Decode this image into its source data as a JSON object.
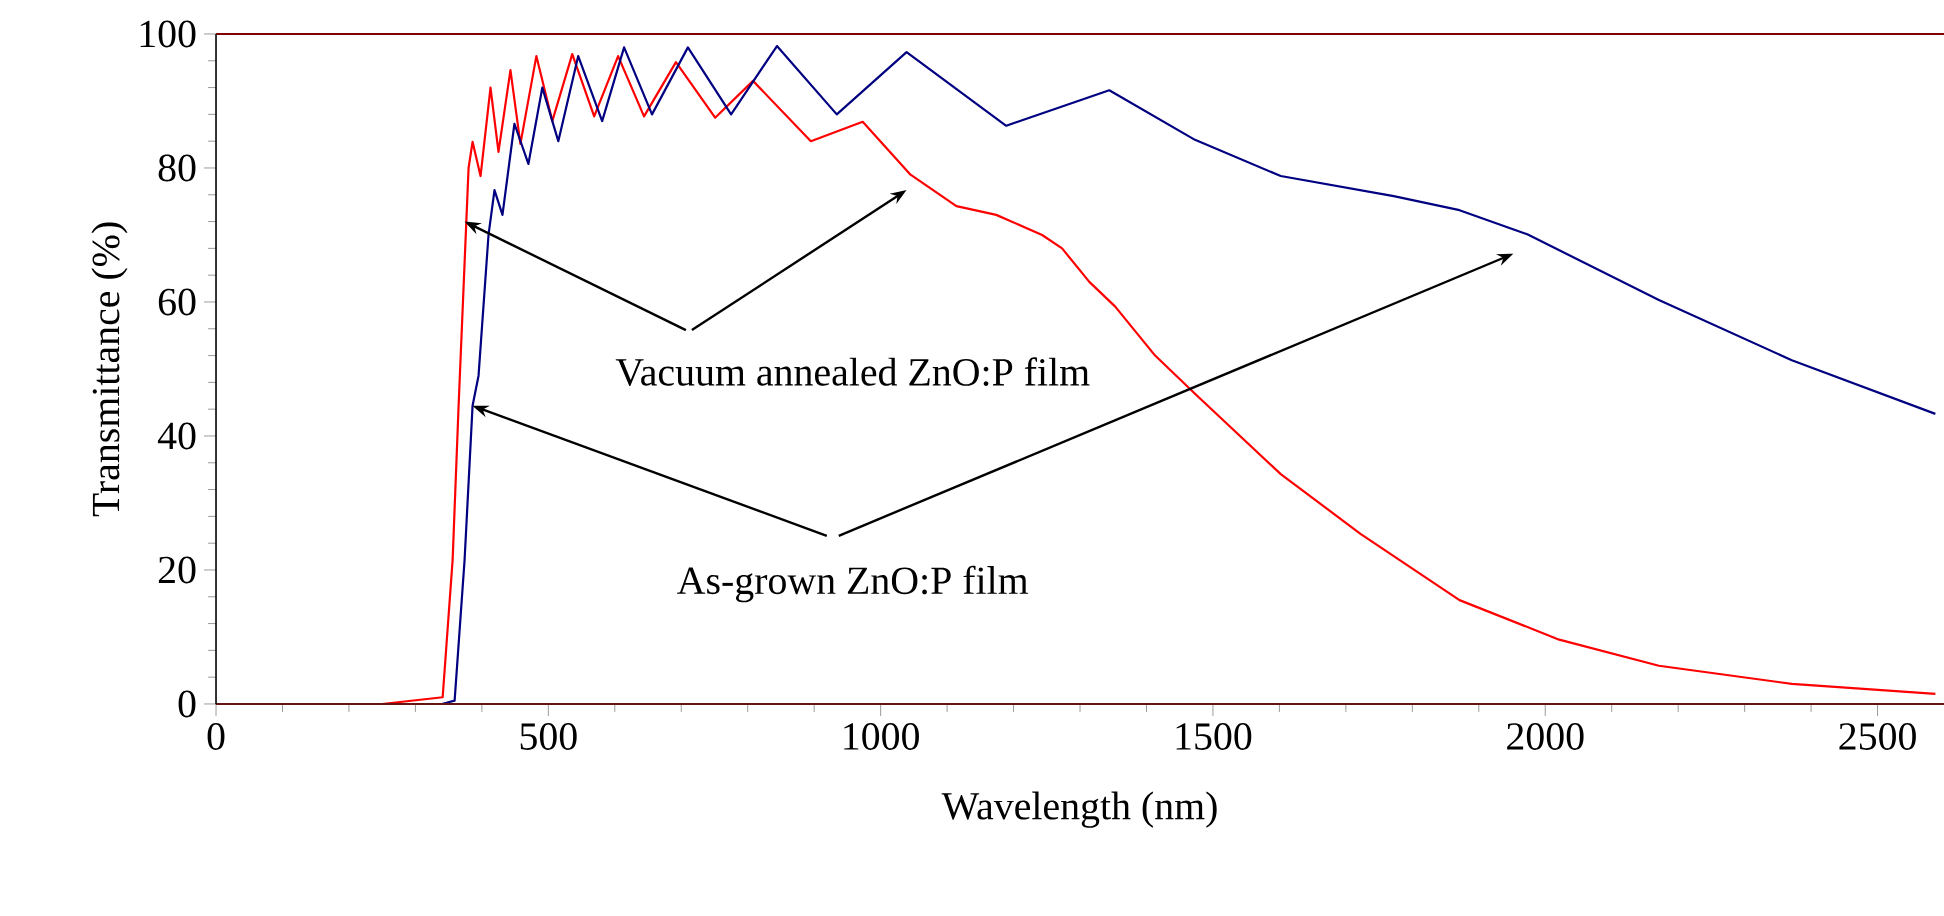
{
  "chart_data": {
    "type": "line",
    "xlabel": "Wavelength (nm)",
    "ylabel": "Transmittance (%)",
    "xlim": [
      0,
      2600
    ],
    "ylim": [
      0,
      100
    ],
    "xticks": [
      0,
      500,
      1000,
      1500,
      2000,
      2500
    ],
    "yticks": [
      0,
      20,
      40,
      60,
      80,
      100
    ],
    "series": [
      {
        "color": "#ff0000",
        "x": [
          250,
          341,
          356,
          365,
          380,
          386,
          398,
          413,
          425,
          443,
          458,
          482,
          506,
          536,
          569,
          605,
          644,
          692,
          751,
          808,
          895,
          973,
          1045,
          1114,
          1174,
          1243,
          1273,
          1314,
          1353,
          1413,
          1473,
          1602,
          1722,
          1871,
          2021,
          2171,
          2371,
          2587
        ],
        "values": [
          0,
          1,
          21.5,
          44.5,
          80,
          83.9,
          78.8,
          92,
          82.4,
          94.6,
          83.6,
          96.7,
          87,
          97,
          87.7,
          96.7,
          87.7,
          95.8,
          87.5,
          93,
          84,
          86.9,
          79,
          74.3,
          73,
          70,
          68,
          63,
          59.3,
          52,
          46.3,
          34.3,
          25.4,
          15.5,
          9.6,
          5.7,
          3,
          1.5
        ]
      },
      {
        "color": "#000080",
        "x": [
          340,
          359,
          374,
          386,
          395,
          410,
          419,
          431,
          449,
          470,
          491,
          515,
          545,
          581,
          614,
          656,
          710,
          775,
          844,
          934,
          1039,
          1189,
          1344,
          1473,
          1602,
          1772,
          1871,
          1973,
          2171,
          2371,
          2587
        ],
        "values": [
          0,
          0.5,
          21.5,
          44.5,
          49,
          70,
          76.7,
          73,
          86.6,
          80.6,
          92,
          84,
          96.7,
          87,
          98,
          88,
          98,
          88,
          98.2,
          88,
          97.3,
          86.3,
          91.6,
          84.2,
          78.8,
          75.8,
          73.7,
          70.1,
          60.3,
          51.3,
          43.3
        ]
      }
    ],
    "annotations": [
      {
        "text": "Vacuum annealed ZnO:P film",
        "x": 374,
        "y": 72
      },
      {
        "text": "As-grown ZnO:P film",
        "x": 386,
        "y": 44.5
      }
    ]
  }
}
